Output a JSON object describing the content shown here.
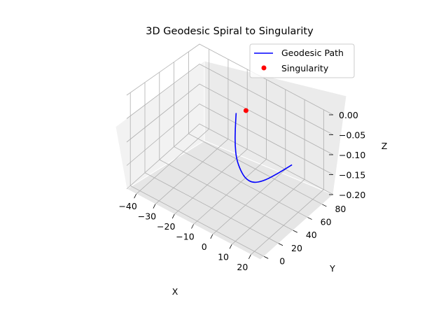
{
  "chart_data": {
    "type": "line",
    "projection": "3d",
    "title": "3D Geodesic Spiral to Singularity",
    "xlabel": "X",
    "ylabel": "Y",
    "zlabel": "Z",
    "xlim": [
      -45,
      25
    ],
    "ylim": [
      -5,
      95
    ],
    "zlim": [
      -0.2,
      0.0
    ],
    "xticks": [
      "−40",
      "−30",
      "−20",
      "−10",
      "0",
      "10",
      "20"
    ],
    "yticks": [
      "0",
      "20",
      "40",
      "60",
      "80"
    ],
    "zticks": [
      "0.00",
      "−0.05",
      "−0.10",
      "−0.15",
      "−0.20"
    ],
    "xtick_values": [
      -40,
      -30,
      -20,
      -10,
      0,
      10,
      20
    ],
    "ytick_values": [
      0,
      20,
      40,
      60,
      80
    ],
    "ztick_values": [
      0.0,
      -0.05,
      -0.1,
      -0.15,
      -0.2
    ],
    "grid": true,
    "legend_position": "upper-right",
    "series": [
      {
        "name": "Geodesic Path",
        "kind": "line",
        "color": "#0000ff",
        "x": [
          -22,
          -16,
          -10,
          -4,
          2,
          7,
          11,
          13.5,
          15,
          16
        ],
        "y": [
          85,
          68,
          52,
          38,
          28,
          22,
          22,
          30,
          45,
          62
        ],
        "z": [
          -0.1,
          -0.1,
          -0.1,
          -0.1,
          -0.1,
          -0.1,
          -0.1,
          -0.1,
          -0.1,
          -0.1
        ]
      },
      {
        "name": "Singularity",
        "kind": "scatter",
        "color": "#ff0000",
        "x": [
          -18
        ],
        "y": [
          88
        ],
        "z": [
          -0.0882
        ]
      }
    ]
  }
}
